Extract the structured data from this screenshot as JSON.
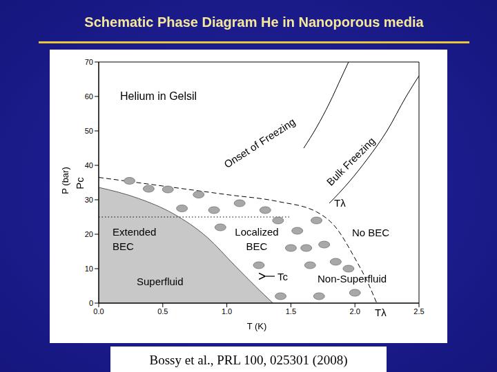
{
  "chart_data": {
    "type": "line",
    "title": "Schematic Phase Diagram He in Nanoporous media",
    "x_label": "T (K)",
    "y_label": "P (bar)",
    "xlim": [
      0,
      2.5
    ],
    "xticks": [
      {
        "value": 0,
        "label": "0.0"
      },
      0.5,
      {
        "value": 1,
        "label": "1.0"
      },
      1.5,
      {
        "value": 2,
        "label": "2.0"
      },
      2.5
    ],
    "ylim": [
      0,
      70
    ],
    "yticks": [
      0,
      10,
      20,
      30,
      40,
      50,
      60,
      70
    ],
    "grid": false,
    "series": [
      {
        "type": "area",
        "color": "#c8c8c8",
        "line_style": "solid",
        "x": [
          0,
          0.31,
          0.58,
          0.85,
          1.06,
          1.22,
          1.36
        ],
        "values": [
          33.6,
          30.4,
          26,
          19,
          11,
          5,
          0
        ]
      },
      {
        "type": "line",
        "color": "#000000",
        "line_style": "dashed",
        "x": [
          0,
          0.5,
          1.0,
          1.4,
          1.7,
          1.85,
          2.0,
          2.1,
          2.17
        ],
        "values": [
          36.5,
          34,
          31.5,
          29.5,
          26.5,
          22,
          13,
          6,
          0
        ]
      },
      {
        "type": "line",
        "color": "#000000",
        "line_style": "dotted",
        "x": [
          0,
          1.5
        ],
        "values": [
          25,
          25
        ]
      },
      {
        "type": "line",
        "color": "#000000",
        "line_style": "solid",
        "x": [
          1.6,
          1.7,
          1.8,
          1.9,
          1.95
        ],
        "values": [
          45,
          51,
          58,
          66,
          70
        ]
      },
      {
        "type": "line",
        "color": "#000000",
        "line_style": "solid",
        "x": [
          1.8,
          1.95,
          2.1,
          2.25,
          2.4,
          2.5
        ],
        "values": [
          29,
          35,
          42,
          50,
          60,
          66
        ]
      }
    ],
    "markers": {
      "marker": "ellipse",
      "color": "#a8a8a8",
      "x": [
        0.24,
        0.39,
        0.54,
        0.78,
        0.65,
        0.9,
        1.1,
        1.3,
        0.95,
        1.55,
        1.5,
        1.62,
        1.76,
        1.65,
        1.85,
        1.42,
        1.72,
        2.0,
        1.95,
        1.25,
        1.4,
        1.7
      ],
      "y": [
        35.5,
        33.2,
        33,
        31.5,
        27.5,
        27,
        29,
        27,
        22,
        21,
        16,
        16,
        17,
        11,
        12,
        2,
        2,
        3,
        10,
        11,
        24,
        24
      ]
    },
    "annotations": [
      "Helium in Gelsil",
      "Onset of Freezing",
      "Bulk Freezing",
      "Tλ",
      "Pc",
      "Extended BEC",
      "Localized BEC",
      "No BEC",
      "Superfluid",
      "Tc",
      "Non-Superfluid",
      "Tλ"
    ]
  },
  "citation": "Bossy et al., PRL 100, 025301 (2008)"
}
